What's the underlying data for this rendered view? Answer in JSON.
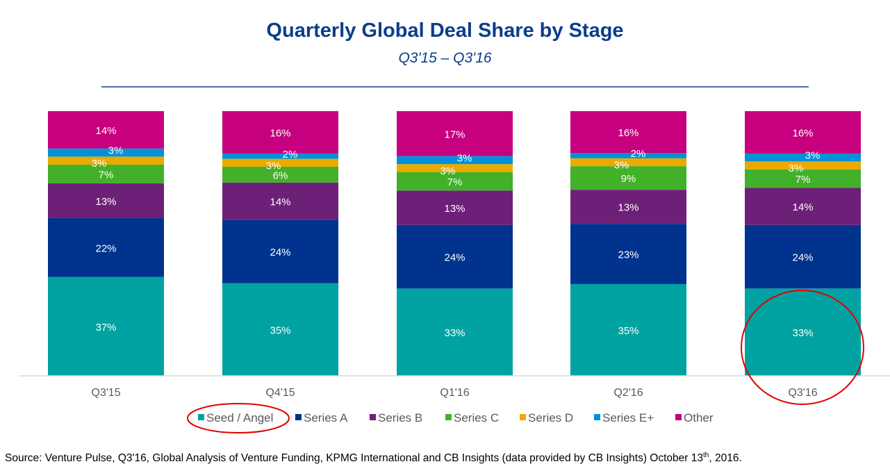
{
  "header": {
    "title": "Quarterly Global Deal Share by Stage",
    "subtitle": "Q3'15 – Q3'16"
  },
  "chart_data": {
    "type": "bar",
    "stacked": true,
    "title": "Quarterly Global Deal Share by Stage",
    "subtitle": "Q3'15 – Q3'16",
    "xlabel": "",
    "ylabel": "",
    "ylim": [
      0,
      100
    ],
    "grid": false,
    "legend": "bottom",
    "categories": [
      "Q3'15",
      "Q4'15",
      "Q1'16",
      "Q2'16",
      "Q3'16"
    ],
    "series": [
      {
        "name": "Seed / Angel",
        "color": "#00a3a1",
        "values": [
          37,
          35,
          33,
          35,
          33
        ]
      },
      {
        "name": "Series A",
        "color": "#00338d",
        "values": [
          22,
          24,
          24,
          23,
          24
        ]
      },
      {
        "name": "Series B",
        "color": "#6d2077",
        "values": [
          13,
          14,
          13,
          13,
          14
        ]
      },
      {
        "name": "Series C",
        "color": "#43b02a",
        "values": [
          7,
          6,
          7,
          9,
          7
        ]
      },
      {
        "name": "Series D",
        "color": "#eaaa00",
        "values": [
          3,
          3,
          3,
          3,
          3
        ]
      },
      {
        "name": "Series E+",
        "color": "#0091da",
        "values": [
          3,
          2,
          3,
          2,
          3
        ]
      },
      {
        "name": "Other",
        "color": "#c6007e",
        "values": [
          14,
          16,
          17,
          16,
          16
        ]
      }
    ],
    "annotations": [
      {
        "type": "highlight-circle",
        "target": "legend: Seed / Angel",
        "color": "#e00000"
      },
      {
        "type": "highlight-circle",
        "target": "Q3'16 Seed / Angel bar (33%)",
        "color": "#e00000"
      }
    ]
  },
  "source": {
    "text": "Source: Venture Pulse, Q3'16, Global Analysis of Venture Funding, KPMG International and CB Insights (data provided by CB Insights) October 13",
    "superscript": "th",
    "suffix": ", 2016."
  }
}
